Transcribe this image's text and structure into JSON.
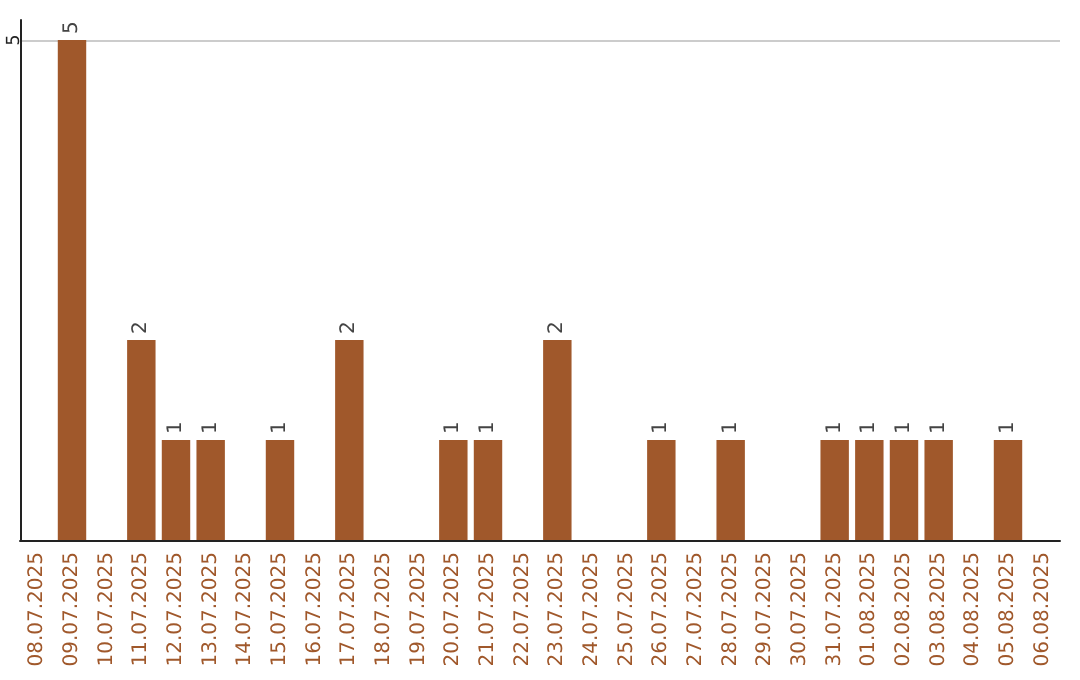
{
  "chart_data": {
    "type": "bar",
    "categories": [
      "08.07.2025",
      "09.07.2025",
      "10.07.2025",
      "11.07.2025",
      "12.07.2025",
      "13.07.2025",
      "14.07.2025",
      "15.07.2025",
      "16.07.2025",
      "17.07.2025",
      "18.07.2025",
      "19.07.2025",
      "20.07.2025",
      "21.07.2025",
      "22.07.2025",
      "23.07.2025",
      "24.07.2025",
      "25.07.2025",
      "26.07.2025",
      "27.07.2025",
      "28.07.2025",
      "29.07.2025",
      "30.07.2025",
      "31.07.2025",
      "01.08.2025",
      "02.08.2025",
      "03.08.2025",
      "04.08.2025",
      "05.08.2025",
      "06.08.2025"
    ],
    "values": [
      0,
      5,
      0,
      2,
      1,
      1,
      0,
      1,
      0,
      2,
      0,
      0,
      1,
      1,
      0,
      2,
      0,
      0,
      1,
      0,
      1,
      0,
      0,
      1,
      1,
      1,
      1,
      0,
      1,
      0
    ],
    "value_labels": [
      null,
      "5",
      null,
      "2",
      "1",
      "1",
      null,
      "1",
      null,
      "2",
      null,
      null,
      "1",
      "1",
      null,
      "2",
      null,
      null,
      "1",
      null,
      "1",
      null,
      null,
      "1",
      "1",
      "1",
      "1",
      null,
      "1",
      null
    ],
    "color": "#a0582b",
    "ylim": [
      0,
      5.2
    ],
    "yticks": [
      5
    ],
    "grid": "y"
  }
}
